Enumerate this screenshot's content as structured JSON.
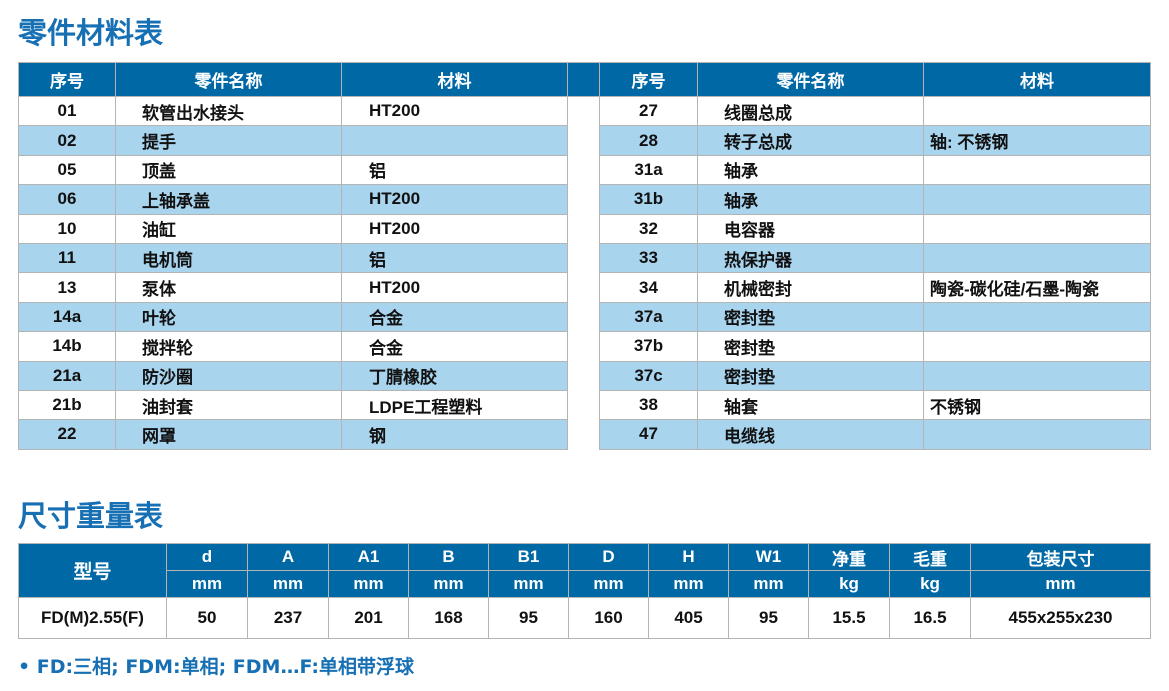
{
  "parts_title": "零件材料表",
  "parts_headers": [
    "序号",
    "零件名称",
    "材料"
  ],
  "parts_left": [
    [
      "01",
      "软管出水接头",
      "HT200"
    ],
    [
      "02",
      "提手",
      ""
    ],
    [
      "05",
      "顶盖",
      "铝"
    ],
    [
      "06",
      "上轴承盖",
      "HT200"
    ],
    [
      "10",
      "油缸",
      "HT200"
    ],
    [
      "11",
      "电机筒",
      "铝"
    ],
    [
      "13",
      "泵体",
      "HT200"
    ],
    [
      "14a",
      "叶轮",
      "合金"
    ],
    [
      "14b",
      "搅拌轮",
      "合金"
    ],
    [
      "21a",
      "防沙圈",
      "丁腈橡胶"
    ],
    [
      "21b",
      "油封套",
      "LDPE工程塑料"
    ],
    [
      "22",
      "网罩",
      "钢"
    ]
  ],
  "parts_right": [
    [
      "27",
      "线圈总成",
      ""
    ],
    [
      "28",
      "转子总成",
      "轴: 不锈钢"
    ],
    [
      "31a",
      "轴承",
      ""
    ],
    [
      "31b",
      "轴承",
      ""
    ],
    [
      "32",
      "电容器",
      ""
    ],
    [
      "33",
      "热保护器",
      ""
    ],
    [
      "34",
      "机械密封",
      "陶瓷-碳化硅/石墨-陶瓷"
    ],
    [
      "37a",
      "密封垫",
      ""
    ],
    [
      "37b",
      "密封垫",
      ""
    ],
    [
      "37c",
      "密封垫",
      ""
    ],
    [
      "38",
      "轴套",
      "不锈钢"
    ],
    [
      "47",
      "电缆线",
      ""
    ]
  ],
  "dims_title": "尺寸重量表",
  "dims_model_header": "型号",
  "dims_headers": [
    "d",
    "A",
    "A1",
    "B",
    "B1",
    "D",
    "H",
    "W1",
    "净重",
    "毛重",
    "包装尺寸"
  ],
  "dims_units": [
    "mm",
    "mm",
    "mm",
    "mm",
    "mm",
    "mm",
    "mm",
    "mm",
    "kg",
    "kg",
    "mm"
  ],
  "dims_row": [
    "FD(M)2.55(F)",
    "50",
    "237",
    "201",
    "168",
    "95",
    "160",
    "405",
    "95",
    "15.5",
    "16.5",
    "455x255x230"
  ],
  "note": "• FD:三相; FDM:单相; FDM…F:单相带浮球",
  "colors": {
    "header": "#0068a5",
    "alt_row": "#a8d4ee",
    "title": "#1670b3"
  }
}
